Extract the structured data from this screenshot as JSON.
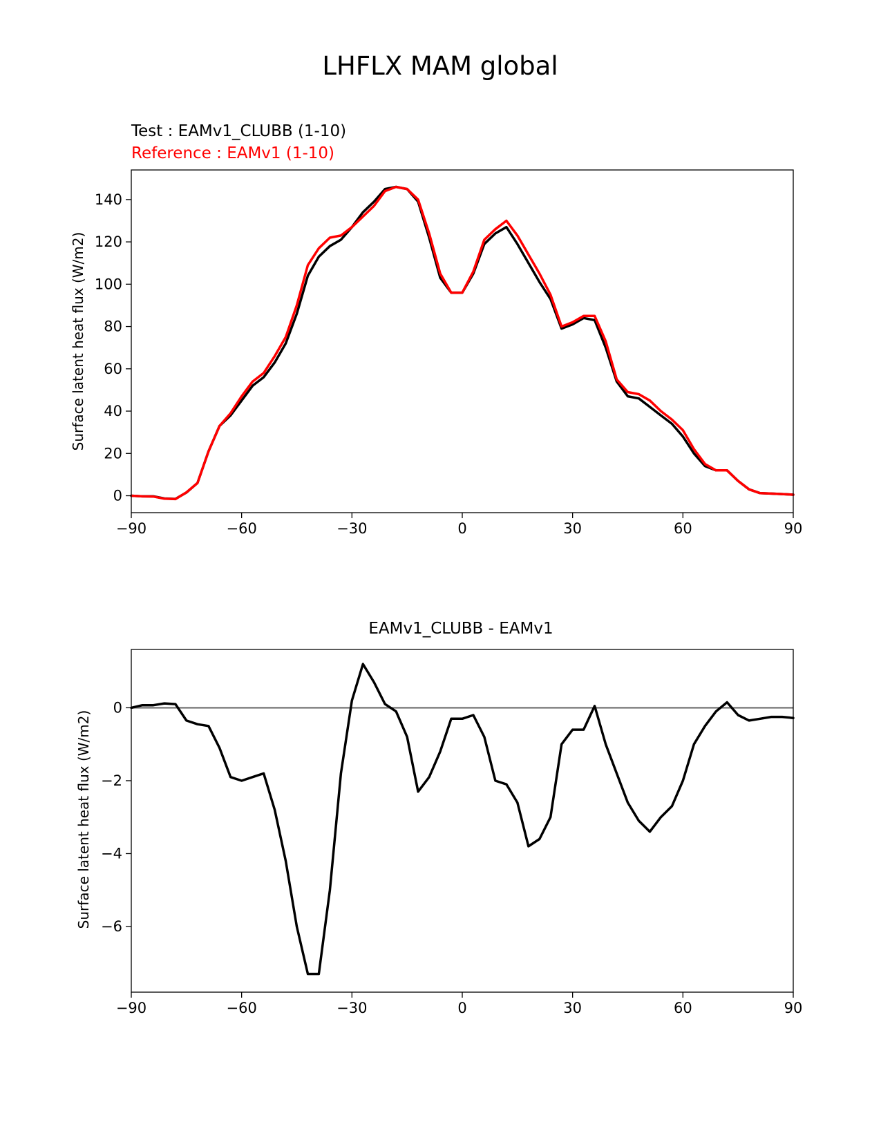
{
  "page": {
    "title": "LHFLX MAM global",
    "test_label": "Test : EAMv1_CLUBB (1-10)",
    "reference_label": "Reference : EAMv1 (1-10)"
  },
  "colors": {
    "test": "#000000",
    "reference": "#ff0000",
    "zero_line": "#808080",
    "axes": "#000000"
  },
  "chart_data": [
    {
      "type": "line",
      "title": "",
      "xlabel": "",
      "ylabel": "Surface latent heat flux (W/m2)",
      "xlim": [
        -90,
        90
      ],
      "ylim": [
        -8,
        154
      ],
      "xticks": [
        -90,
        -60,
        -30,
        0,
        30,
        60,
        90
      ],
      "xtick_labels": [
        "−90",
        "−60",
        "−30",
        "0",
        "30",
        "60",
        "90"
      ],
      "yticks": [
        0,
        20,
        40,
        60,
        80,
        100,
        120,
        140
      ],
      "ytick_labels": [
        "0",
        "20",
        "40",
        "60",
        "80",
        "100",
        "120",
        "140"
      ],
      "x": [
        -90,
        -87,
        -84,
        -81,
        -78,
        -75,
        -72,
        -69,
        -66,
        -63,
        -60,
        -57,
        -54,
        -51,
        -48,
        -45,
        -42,
        -39,
        -36,
        -33,
        -30,
        -27,
        -24,
        -21,
        -18,
        -15,
        -12,
        -9,
        -6,
        -3,
        0,
        3,
        6,
        9,
        12,
        15,
        18,
        21,
        24,
        27,
        30,
        33,
        36,
        39,
        42,
        45,
        48,
        51,
        54,
        57,
        60,
        63,
        66,
        69,
        72,
        75,
        78,
        81,
        84,
        87,
        90
      ],
      "series": [
        {
          "name": "Test : EAMv1_CLUBB (1-10)",
          "color": "#000000",
          "values": [
            0,
            -0.3,
            -0.3,
            -1.3,
            -1.5,
            1.5,
            6,
            21,
            33,
            38,
            45,
            52,
            56,
            63,
            72,
            86,
            104,
            113,
            118,
            121,
            127,
            134,
            139,
            145,
            146,
            145,
            139,
            122,
            103,
            96,
            96,
            105,
            119,
            124,
            127,
            119,
            110,
            101,
            93,
            79,
            81,
            84,
            83,
            70,
            54,
            47,
            46,
            42,
            38,
            34,
            28,
            20,
            14,
            12,
            12,
            7,
            3,
            1.2,
            1,
            0.8,
            0.5
          ]
        },
        {
          "name": "Reference : EAMv1 (1-10)",
          "color": "#ff0000",
          "values": [
            0,
            -0.3,
            -0.4,
            -1.4,
            -1.6,
            1.6,
            6,
            21,
            33,
            39,
            47,
            54,
            58,
            66,
            75,
            90,
            109,
            117,
            122,
            123,
            127,
            132,
            137,
            144,
            146,
            145,
            140,
            124,
            105,
            96,
            96,
            106,
            121,
            126,
            130,
            123,
            114,
            105,
            95,
            80,
            82,
            85,
            85,
            73,
            55,
            49,
            48,
            45,
            40,
            36,
            31,
            22,
            15,
            12,
            12,
            7,
            3,
            1.2,
            1,
            0.8,
            0.5
          ]
        }
      ]
    },
    {
      "type": "line",
      "title": "EAMv1_CLUBB - EAMv1",
      "xlabel": "",
      "ylabel": "Surface latent heat flux (W/m2)",
      "xlim": [
        -90,
        90
      ],
      "ylim": [
        -7.8,
        1.6
      ],
      "xticks": [
        -90,
        -60,
        -30,
        0,
        30,
        60,
        90
      ],
      "xtick_labels": [
        "−90",
        "−60",
        "−30",
        "0",
        "30",
        "60",
        "90"
      ],
      "yticks": [
        0,
        -2,
        -4,
        -6
      ],
      "ytick_labels": [
        "0",
        "−2",
        "−4",
        "−6"
      ],
      "zero_line": 0,
      "x": [
        -90,
        -87,
        -84,
        -81,
        -78,
        -75,
        -72,
        -69,
        -66,
        -63,
        -60,
        -57,
        -54,
        -51,
        -48,
        -45,
        -42,
        -39,
        -36,
        -33,
        -30,
        -27,
        -24,
        -21,
        -18,
        -15,
        -12,
        -9,
        -6,
        -3,
        0,
        3,
        6,
        9,
        12,
        15,
        18,
        21,
        24,
        27,
        30,
        33,
        36,
        39,
        42,
        45,
        48,
        51,
        54,
        57,
        60,
        63,
        66,
        69,
        72,
        75,
        78,
        81,
        84,
        87,
        90
      ],
      "series": [
        {
          "name": "EAMv1_CLUBB - EAMv1",
          "color": "#000000",
          "values": [
            0,
            0.07,
            0.07,
            0.12,
            0.1,
            -0.35,
            -0.45,
            -0.5,
            -1.1,
            -1.9,
            -2.0,
            -1.9,
            -1.8,
            -2.8,
            -4.2,
            -6.0,
            -7.3,
            -7.3,
            -5.0,
            -1.8,
            0.2,
            1.2,
            0.7,
            0.1,
            -0.1,
            -0.8,
            -2.3,
            -1.9,
            -1.2,
            -0.3,
            -0.3,
            -0.2,
            -0.8,
            -2.0,
            -2.1,
            -2.6,
            -3.8,
            -3.6,
            -3.0,
            -1.0,
            -0.6,
            -0.6,
            0.05,
            -1.0,
            -1.8,
            -2.6,
            -3.1,
            -3.4,
            -3.0,
            -2.7,
            -2.0,
            -1.0,
            -0.5,
            -0.1,
            0.15,
            -0.2,
            -0.35,
            -0.3,
            -0.25,
            -0.25,
            -0.28
          ]
        }
      ]
    }
  ]
}
